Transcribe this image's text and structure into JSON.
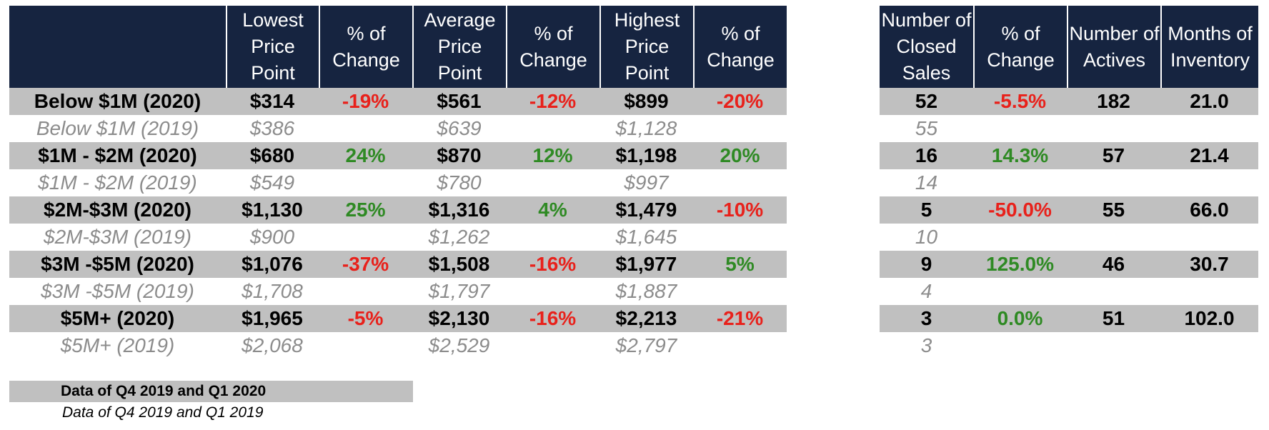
{
  "left_table": {
    "headers": [
      "",
      "Lowest Price Point",
      "% of Change",
      "Average Price Point",
      "% of Change",
      "Highest Price Point",
      "% of Change"
    ],
    "rows": [
      {
        "label": "Below $1M (2020)",
        "low": "$314",
        "low_chg": "-19%",
        "avg": "$561",
        "avg_chg": "-12%",
        "high": "$899",
        "high_chg": "-20%"
      },
      {
        "label": "Below $1M (2019)",
        "low": "$386",
        "avg": "$639",
        "high": "$1,128"
      },
      {
        "label": "$1M - $2M (2020)",
        "low": "$680",
        "low_chg": "24%",
        "avg": "$870",
        "avg_chg": "12%",
        "high": "$1,198",
        "high_chg": "20%"
      },
      {
        "label": "$1M - $2M (2019)",
        "low": "$549",
        "avg": "$780",
        "high": "$997"
      },
      {
        "label": "$2M-$3M (2020)",
        "low": "$1,130",
        "low_chg": "25%",
        "avg": "$1,316",
        "avg_chg": "4%",
        "high": "$1,479",
        "high_chg": "-10%"
      },
      {
        "label": "$2M-$3M (2019)",
        "low": "$900",
        "avg": "$1,262",
        "high": "$1,645"
      },
      {
        "label": "$3M -$5M (2020)",
        "low": "$1,076",
        "low_chg": "-37%",
        "avg": "$1,508",
        "avg_chg": "-16%",
        "high": "$1,977",
        "high_chg": "5%"
      },
      {
        "label": "$3M -$5M (2019)",
        "low": "$1,708",
        "avg": "$1,797",
        "high": "$1,887"
      },
      {
        "label": "$5M+ (2020)",
        "low": "$1,965",
        "low_chg": "-5%",
        "avg": "$2,130",
        "avg_chg": "-16%",
        "high": "$2,213",
        "high_chg": "-21%"
      },
      {
        "label": "$5M+ (2019)",
        "low": "$2,068",
        "avg": "$2,529",
        "high": "$2,797"
      }
    ]
  },
  "right_table": {
    "headers": [
      "Number of Closed Sales",
      "% of Change",
      "Number of Actives",
      "Months of Inventory"
    ],
    "rows": [
      {
        "closed": "52",
        "chg": "-5.5%",
        "actives": "182",
        "months": "21.0"
      },
      {
        "closed": "55"
      },
      {
        "closed": "16",
        "chg": "14.3%",
        "actives": "57",
        "months": "21.4"
      },
      {
        "closed": "14"
      },
      {
        "closed": "5",
        "chg": "-50.0%",
        "actives": "55",
        "months": "66.0"
      },
      {
        "closed": "10"
      },
      {
        "closed": "9",
        "chg": "125.0%",
        "actives": "46",
        "months": "30.7"
      },
      {
        "closed": "4"
      },
      {
        "closed": "3",
        "chg": "0.0%",
        "actives": "51",
        "months": "102.0"
      },
      {
        "closed": "3"
      }
    ]
  },
  "legend": {
    "current": "Data of Q4 2019 and Q1 2020",
    "prior": "Data of Q4 2019 and Q1 2019"
  },
  "colors": {
    "header_bg": "#162440",
    "current_row_bg": "#c0c0c0",
    "prior_row_text": "#8c8c8c",
    "negative": "#e8211b",
    "positive": "#2f8a24"
  }
}
